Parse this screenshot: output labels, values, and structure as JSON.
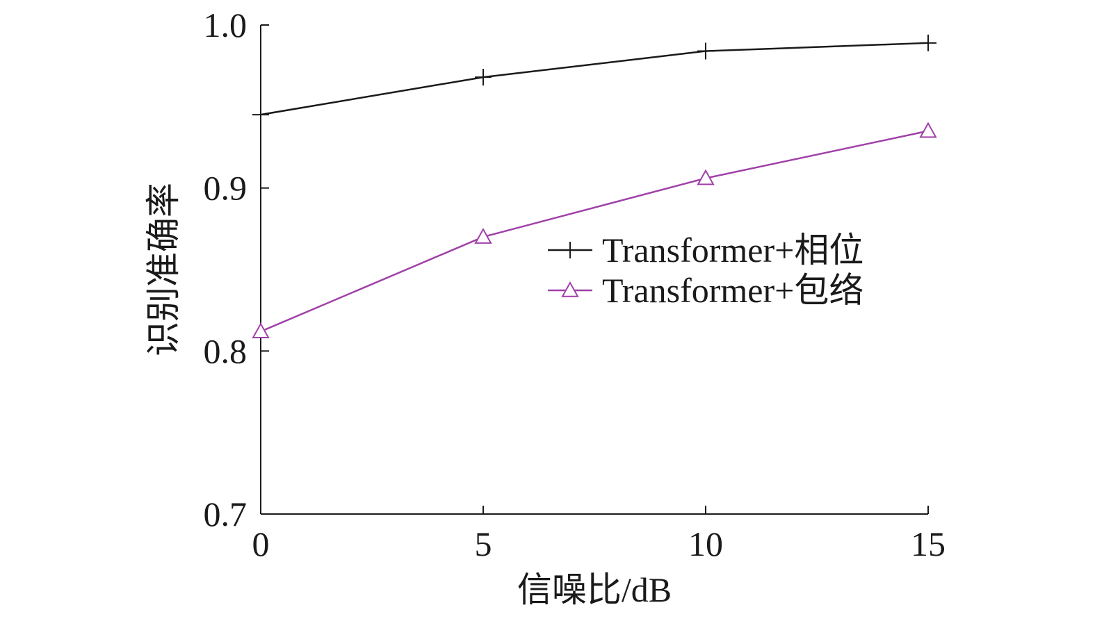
{
  "chart_data": {
    "type": "line",
    "title": "",
    "xlabel": "信噪比/dB",
    "ylabel": "识别准确率",
    "x": [
      0,
      5,
      10,
      15
    ],
    "xlim": [
      0,
      15
    ],
    "ylim": [
      0.7,
      1.0
    ],
    "xticks": [
      "0",
      "5",
      "10",
      "15"
    ],
    "yticks": [
      "0.7",
      "0.8",
      "0.9",
      "1.0"
    ],
    "grid": false,
    "legend_position": "center-right",
    "series": [
      {
        "name": "Transformer+相位",
        "values": [
          0.945,
          0.968,
          0.984,
          0.989
        ],
        "color": "#1a1a1a",
        "marker": "plus"
      },
      {
        "name": "Transformer+包络",
        "values": [
          0.812,
          0.87,
          0.906,
          0.935
        ],
        "color": "#a040a8",
        "marker": "triangle"
      }
    ]
  }
}
